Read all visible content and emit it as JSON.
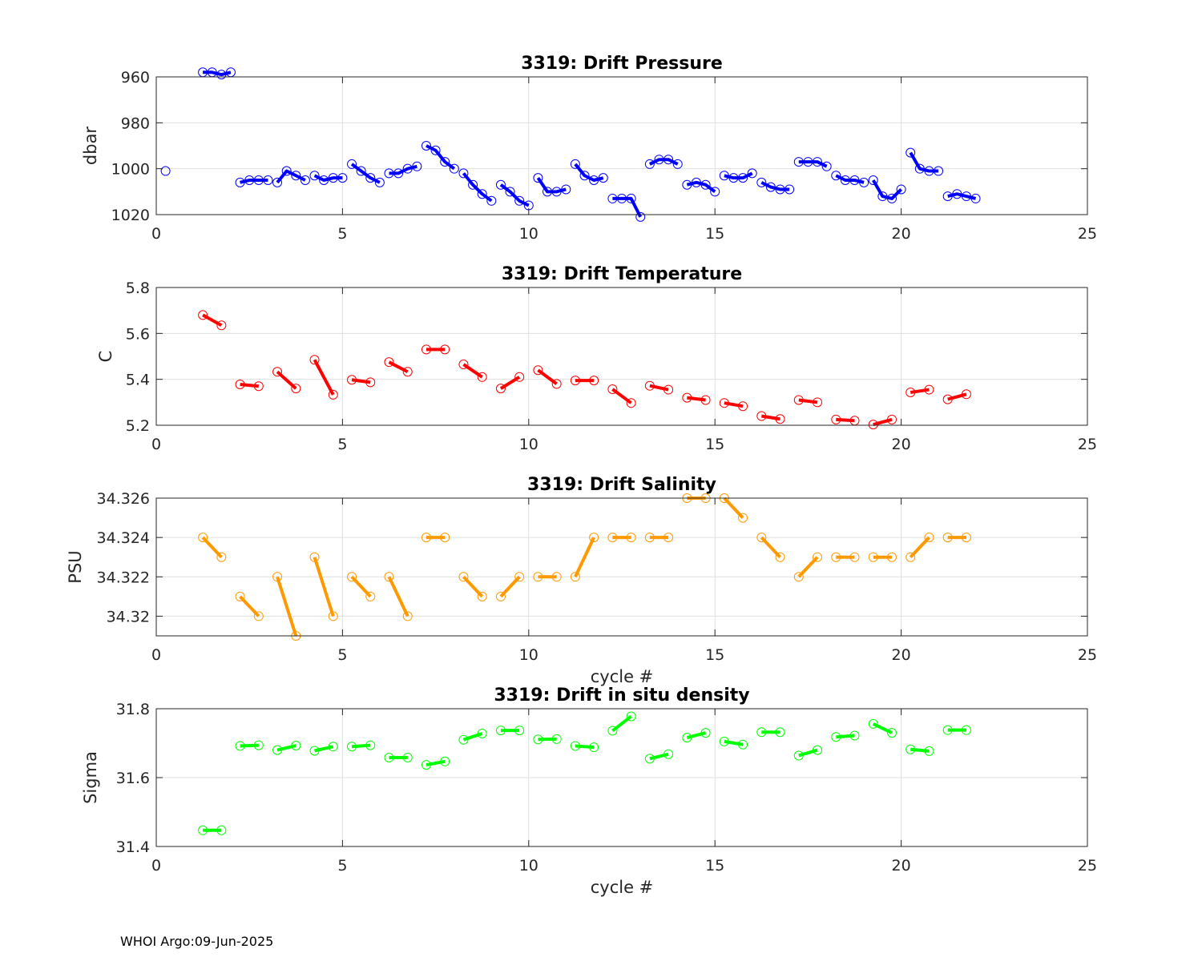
{
  "footer": "WHOI Argo:09-Jun-2025",
  "chart_data": [
    {
      "type": "line",
      "title": "3319: Drift Pressure",
      "xlabel": "",
      "ylabel": "dbar",
      "xlim": [
        0,
        25
      ],
      "ylim": [
        960,
        1020
      ],
      "y_reversed": true,
      "xticks": [
        0,
        5,
        10,
        15,
        20,
        25
      ],
      "yticks": [
        960,
        980,
        1000,
        1020
      ],
      "grid": true,
      "color": "#0000ff",
      "marker": "circle",
      "segments": [
        {
          "x": [
            0.25
          ],
          "y": [
            1001
          ]
        },
        {
          "x": [
            1.25,
            1.5,
            1.75,
            2.0
          ],
          "y": [
            958,
            958,
            959,
            958
          ]
        },
        {
          "x": [
            2.25,
            2.5,
            2.75,
            3.0
          ],
          "y": [
            1006,
            1005,
            1005,
            1005
          ]
        },
        {
          "x": [
            3.25,
            3.5,
            3.75,
            4.0
          ],
          "y": [
            1006,
            1001,
            1003,
            1005
          ]
        },
        {
          "x": [
            4.25,
            4.5,
            4.75,
            5.0
          ],
          "y": [
            1003,
            1005,
            1004,
            1004
          ]
        },
        {
          "x": [
            5.25,
            5.5,
            5.75,
            6.0
          ],
          "y": [
            998,
            1001,
            1004,
            1006
          ]
        },
        {
          "x": [
            6.25,
            6.5,
            6.75,
            7.0
          ],
          "y": [
            1002,
            1002,
            1000,
            999
          ]
        },
        {
          "x": [
            7.25,
            7.5,
            7.75,
            8.0
          ],
          "y": [
            990,
            992,
            997,
            1000
          ]
        },
        {
          "x": [
            8.25,
            8.5,
            8.75,
            9.0
          ],
          "y": [
            1002,
            1007,
            1011,
            1014
          ]
        },
        {
          "x": [
            9.25,
            9.5,
            9.75,
            10.0
          ],
          "y": [
            1007,
            1010,
            1014,
            1016
          ]
        },
        {
          "x": [
            10.25,
            10.5,
            10.75,
            11.0
          ],
          "y": [
            1004,
            1010,
            1010,
            1009
          ]
        },
        {
          "x": [
            11.25,
            11.5,
            11.75,
            12.0
          ],
          "y": [
            998,
            1003,
            1005,
            1004
          ]
        },
        {
          "x": [
            12.25,
            12.5,
            12.75,
            13.0
          ],
          "y": [
            1013,
            1013,
            1013,
            1021
          ]
        },
        {
          "x": [
            13.25,
            13.5,
            13.75,
            14.0
          ],
          "y": [
            998,
            996,
            996,
            998
          ]
        },
        {
          "x": [
            14.25,
            14.5,
            14.75,
            15.0
          ],
          "y": [
            1007,
            1006,
            1007,
            1010
          ]
        },
        {
          "x": [
            15.25,
            15.5,
            15.75,
            16.0
          ],
          "y": [
            1003,
            1004,
            1004,
            1002
          ]
        },
        {
          "x": [
            16.25,
            16.5,
            16.75,
            17.0
          ],
          "y": [
            1006,
            1008,
            1009,
            1009
          ]
        },
        {
          "x": [
            17.25,
            17.5,
            17.75,
            18.0
          ],
          "y": [
            997,
            997,
            997,
            999
          ]
        },
        {
          "x": [
            18.25,
            18.5,
            18.75,
            19.0
          ],
          "y": [
            1003,
            1005,
            1005,
            1006
          ]
        },
        {
          "x": [
            19.25,
            19.5,
            19.75,
            20.0
          ],
          "y": [
            1005,
            1012,
            1013,
            1009
          ]
        },
        {
          "x": [
            20.25,
            20.5,
            20.75,
            21.0
          ],
          "y": [
            993,
            1000,
            1001,
            1001
          ]
        },
        {
          "x": [
            21.25,
            21.5,
            21.75,
            22.0
          ],
          "y": [
            1012,
            1011,
            1012,
            1013
          ]
        }
      ]
    },
    {
      "type": "line",
      "title": "3319: Drift Temperature",
      "xlabel": "",
      "ylabel": "C",
      "xlim": [
        0,
        25
      ],
      "ylim": [
        5.2,
        5.8
      ],
      "xticks": [
        0,
        5,
        10,
        15,
        20,
        25
      ],
      "yticks": [
        5.2,
        5.4,
        5.6,
        5.8
      ],
      "grid": true,
      "color": "#ff0000",
      "marker": "circle",
      "segments": [
        {
          "x": [
            1.25,
            1.75
          ],
          "y": [
            5.68,
            5.635
          ]
        },
        {
          "x": [
            2.25,
            2.75
          ],
          "y": [
            5.378,
            5.37
          ]
        },
        {
          "x": [
            3.25,
            3.75
          ],
          "y": [
            5.433,
            5.36
          ]
        },
        {
          "x": [
            4.25,
            4.75
          ],
          "y": [
            5.485,
            5.333
          ]
        },
        {
          "x": [
            5.25,
            5.75
          ],
          "y": [
            5.398,
            5.387
          ]
        },
        {
          "x": [
            6.25,
            6.75
          ],
          "y": [
            5.475,
            5.433
          ]
        },
        {
          "x": [
            7.25,
            7.75
          ],
          "y": [
            5.53,
            5.53
          ]
        },
        {
          "x": [
            8.25,
            8.75
          ],
          "y": [
            5.465,
            5.41
          ]
        },
        {
          "x": [
            9.25,
            9.75
          ],
          "y": [
            5.36,
            5.41
          ]
        },
        {
          "x": [
            10.25,
            10.75
          ],
          "y": [
            5.44,
            5.38
          ]
        },
        {
          "x": [
            11.25,
            11.75
          ],
          "y": [
            5.395,
            5.395
          ]
        },
        {
          "x": [
            12.25,
            12.75
          ],
          "y": [
            5.357,
            5.297
          ]
        },
        {
          "x": [
            13.25,
            13.75
          ],
          "y": [
            5.372,
            5.355
          ]
        },
        {
          "x": [
            14.25,
            14.75
          ],
          "y": [
            5.32,
            5.31
          ]
        },
        {
          "x": [
            15.25,
            15.75
          ],
          "y": [
            5.297,
            5.283
          ]
        },
        {
          "x": [
            16.25,
            16.75
          ],
          "y": [
            5.24,
            5.227
          ]
        },
        {
          "x": [
            17.25,
            17.75
          ],
          "y": [
            5.31,
            5.3
          ]
        },
        {
          "x": [
            18.25,
            18.75
          ],
          "y": [
            5.225,
            5.22
          ]
        },
        {
          "x": [
            19.25,
            19.75
          ],
          "y": [
            5.203,
            5.225
          ]
        },
        {
          "x": [
            20.25,
            20.75
          ],
          "y": [
            5.343,
            5.355
          ]
        },
        {
          "x": [
            21.25,
            21.75
          ],
          "y": [
            5.313,
            5.335
          ]
        }
      ]
    },
    {
      "type": "line",
      "title": "3319: Drift Salinity",
      "xlabel": "cycle #",
      "ylabel": "PSU",
      "xlim": [
        0,
        25
      ],
      "ylim": [
        34.319,
        34.326
      ],
      "xticks": [
        0,
        5,
        10,
        15,
        20,
        25
      ],
      "yticks": [
        34.32,
        34.322,
        34.324,
        34.326
      ],
      "ytick_labels": [
        "34.32",
        "34.322",
        "34.324",
        "34.326"
      ],
      "grid": true,
      "color": "#ff9900",
      "marker": "circle",
      "segments": [
        {
          "x": [
            1.25,
            1.75
          ],
          "y": [
            34.324,
            34.323
          ]
        },
        {
          "x": [
            2.25,
            2.75
          ],
          "y": [
            34.321,
            34.32
          ]
        },
        {
          "x": [
            3.25,
            3.75
          ],
          "y": [
            34.322,
            34.319
          ]
        },
        {
          "x": [
            4.25,
            4.75
          ],
          "y": [
            34.323,
            34.32
          ]
        },
        {
          "x": [
            5.25,
            5.75
          ],
          "y": [
            34.322,
            34.321
          ]
        },
        {
          "x": [
            6.25,
            6.75
          ],
          "y": [
            34.322,
            34.32
          ]
        },
        {
          "x": [
            7.25,
            7.75
          ],
          "y": [
            34.324,
            34.324
          ]
        },
        {
          "x": [
            8.25,
            8.75
          ],
          "y": [
            34.322,
            34.321
          ]
        },
        {
          "x": [
            9.25,
            9.75
          ],
          "y": [
            34.321,
            34.322
          ]
        },
        {
          "x": [
            10.25,
            10.75
          ],
          "y": [
            34.322,
            34.322
          ]
        },
        {
          "x": [
            11.25,
            11.75
          ],
          "y": [
            34.322,
            34.324
          ]
        },
        {
          "x": [
            12.25,
            12.75
          ],
          "y": [
            34.324,
            34.324
          ]
        },
        {
          "x": [
            13.25,
            13.75
          ],
          "y": [
            34.324,
            34.324
          ]
        },
        {
          "x": [
            14.25,
            14.75
          ],
          "y": [
            34.326,
            34.326
          ]
        },
        {
          "x": [
            15.25,
            15.75
          ],
          "y": [
            34.326,
            34.325
          ]
        },
        {
          "x": [
            16.25,
            16.75
          ],
          "y": [
            34.324,
            34.323
          ]
        },
        {
          "x": [
            17.25,
            17.75
          ],
          "y": [
            34.322,
            34.323
          ]
        },
        {
          "x": [
            18.25,
            18.75
          ],
          "y": [
            34.323,
            34.323
          ]
        },
        {
          "x": [
            19.25,
            19.75
          ],
          "y": [
            34.323,
            34.323
          ]
        },
        {
          "x": [
            20.25,
            20.75
          ],
          "y": [
            34.323,
            34.324
          ]
        },
        {
          "x": [
            21.25,
            21.75
          ],
          "y": [
            34.324,
            34.324
          ]
        }
      ]
    },
    {
      "type": "line",
      "title": "3319: Drift in situ density",
      "xlabel": "cycle #",
      "ylabel": "Sigma",
      "xlim": [
        0,
        25
      ],
      "ylim": [
        31.4,
        31.8
      ],
      "xticks": [
        0,
        5,
        10,
        15,
        20,
        25
      ],
      "yticks": [
        31.4,
        31.6,
        31.8
      ],
      "grid": true,
      "color": "#00ff00",
      "marker": "circle",
      "segments": [
        {
          "x": [
            1.25,
            1.75
          ],
          "y": [
            31.447,
            31.447
          ]
        },
        {
          "x": [
            2.25,
            2.75
          ],
          "y": [
            31.692,
            31.694
          ]
        },
        {
          "x": [
            3.25,
            3.75
          ],
          "y": [
            31.68,
            31.693
          ]
        },
        {
          "x": [
            4.25,
            4.75
          ],
          "y": [
            31.678,
            31.69
          ]
        },
        {
          "x": [
            5.25,
            5.75
          ],
          "y": [
            31.69,
            31.694
          ]
        },
        {
          "x": [
            6.25,
            6.75
          ],
          "y": [
            31.658,
            31.658
          ]
        },
        {
          "x": [
            7.25,
            7.75
          ],
          "y": [
            31.637,
            31.647
          ]
        },
        {
          "x": [
            8.25,
            8.75
          ],
          "y": [
            31.71,
            31.728
          ]
        },
        {
          "x": [
            9.25,
            9.75
          ],
          "y": [
            31.737,
            31.737
          ]
        },
        {
          "x": [
            10.25,
            10.75
          ],
          "y": [
            31.711,
            31.712
          ]
        },
        {
          "x": [
            11.25,
            11.75
          ],
          "y": [
            31.692,
            31.688
          ]
        },
        {
          "x": [
            12.25,
            12.75
          ],
          "y": [
            31.736,
            31.778
          ]
        },
        {
          "x": [
            13.25,
            13.75
          ],
          "y": [
            31.655,
            31.668
          ]
        },
        {
          "x": [
            14.25,
            14.75
          ],
          "y": [
            31.716,
            31.73
          ]
        },
        {
          "x": [
            15.25,
            15.75
          ],
          "y": [
            31.705,
            31.696
          ]
        },
        {
          "x": [
            16.25,
            16.75
          ],
          "y": [
            31.732,
            31.732
          ]
        },
        {
          "x": [
            17.25,
            17.75
          ],
          "y": [
            31.664,
            31.68
          ]
        },
        {
          "x": [
            18.25,
            18.75
          ],
          "y": [
            31.718,
            31.722
          ]
        },
        {
          "x": [
            19.25,
            19.75
          ],
          "y": [
            31.756,
            31.73
          ]
        },
        {
          "x": [
            20.25,
            20.75
          ],
          "y": [
            31.682,
            31.677
          ]
        },
        {
          "x": [
            21.25,
            21.75
          ],
          "y": [
            31.738,
            31.738
          ]
        }
      ]
    }
  ]
}
